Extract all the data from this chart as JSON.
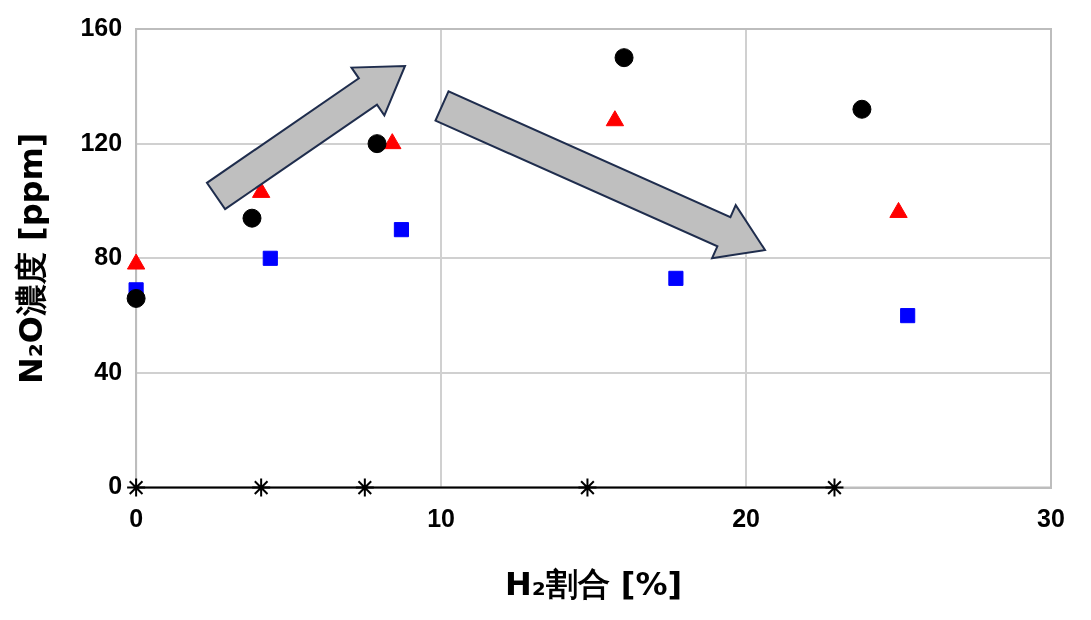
{
  "chart_data": {
    "type": "scatter",
    "xlabel": "H₂割合 [%]",
    "ylabel": "N₂O濃度 [ppm]",
    "xlim": [
      0,
      30
    ],
    "xticks": [
      0,
      10,
      20,
      30
    ],
    "ylim": [
      0,
      160
    ],
    "yticks": [
      0,
      40,
      80,
      120,
      160
    ],
    "grid": true,
    "legend": false,
    "series": [
      {
        "type": "scatter",
        "marker": "circle",
        "color": "#000000",
        "x": [
          0,
          3.8,
          7.9,
          16,
          23.8
        ],
        "values": [
          66,
          94,
          120,
          150,
          132
        ]
      },
      {
        "type": "scatter",
        "marker": "triangle",
        "color": "#ff0000",
        "x": [
          0,
          4.1,
          8.4,
          15.7,
          25
        ],
        "values": [
          78,
          103,
          120,
          128,
          96
        ]
      },
      {
        "type": "scatter",
        "marker": "square",
        "color": "#0000ff",
        "x": [
          0,
          4.4,
          8.7,
          17.7,
          25.3
        ],
        "values": [
          69,
          80,
          90,
          73,
          60
        ]
      },
      {
        "type": "line",
        "marker": "cross",
        "color": "#000000",
        "x": [
          0,
          4.1,
          7.5,
          14.8,
          22.9
        ],
        "values": [
          0,
          0,
          0,
          0,
          0
        ]
      }
    ]
  }
}
